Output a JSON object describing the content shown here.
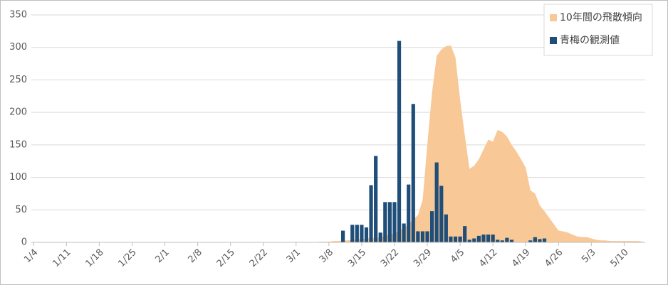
{
  "chart_data": {
    "type": "combo",
    "categories": [
      "1/4",
      null,
      null,
      null,
      null,
      null,
      null,
      "1/11",
      null,
      null,
      null,
      null,
      null,
      null,
      "1/18",
      null,
      null,
      null,
      null,
      null,
      null,
      "1/25",
      null,
      null,
      null,
      null,
      null,
      null,
      "2/1",
      null,
      null,
      null,
      null,
      null,
      null,
      "2/8",
      null,
      null,
      null,
      null,
      null,
      null,
      "2/15",
      null,
      null,
      null,
      null,
      null,
      null,
      "2/22",
      null,
      null,
      null,
      null,
      null,
      null,
      "3/1",
      null,
      null,
      null,
      null,
      null,
      null,
      "3/8",
      null,
      null,
      null,
      null,
      null,
      null,
      "3/15",
      null,
      null,
      null,
      null,
      null,
      null,
      "3/22",
      null,
      null,
      null,
      null,
      null,
      null,
      "3/29",
      null,
      null,
      null,
      null,
      null,
      null,
      "4/5",
      null,
      null,
      null,
      null,
      null,
      null,
      "4/12",
      null,
      null,
      null,
      null,
      null,
      null,
      "4/19",
      null,
      null,
      null,
      null,
      null,
      null,
      "4/26",
      null,
      null,
      null,
      null,
      null,
      null,
      "5/3",
      null,
      null,
      null,
      null,
      null,
      null,
      "5/10",
      null,
      null,
      null,
      null
    ],
    "series": [
      {
        "name": "10年間の飛散傾向",
        "type": "area",
        "color": "#f9c897",
        "values": [
          0,
          0,
          0,
          0,
          0,
          0,
          0,
          0,
          0,
          0,
          0,
          0,
          0,
          0,
          0,
          0,
          0,
          0,
          0,
          0,
          0,
          0,
          0,
          0,
          0,
          0,
          0,
          0,
          0,
          0,
          0,
          0,
          0,
          0,
          0,
          0,
          0,
          0,
          0,
          0,
          0,
          0,
          0,
          0,
          0,
          0,
          0,
          0,
          0,
          0,
          0,
          0,
          0,
          0,
          0,
          0,
          0,
          0,
          0,
          0,
          0,
          1,
          1,
          1,
          2,
          2,
          3,
          3,
          4,
          5,
          5,
          6,
          7,
          7,
          8,
          10,
          12,
          14,
          18,
          22,
          28,
          35,
          42,
          65,
          150,
          230,
          287,
          297,
          302,
          303,
          285,
          220,
          165,
          113,
          118,
          128,
          143,
          158,
          155,
          173,
          170,
          163,
          150,
          140,
          128,
          115,
          80,
          75,
          57,
          48,
          38,
          28,
          18,
          17,
          15,
          12,
          9,
          8,
          8,
          6,
          4,
          3,
          3,
          2,
          2,
          2,
          2,
          2,
          2,
          2,
          1
        ]
      },
      {
        "name": "青梅の観測値",
        "type": "bar",
        "color": "#1f4e79",
        "values": [
          0,
          0,
          0,
          0,
          0,
          0,
          0,
          0,
          0,
          0,
          0,
          0,
          0,
          0,
          0,
          0,
          0,
          0,
          0,
          0,
          0,
          0,
          0,
          0,
          0,
          0,
          0,
          0,
          0,
          0,
          0,
          0,
          0,
          0,
          0,
          0,
          0,
          0,
          0,
          0,
          0,
          0,
          0,
          0,
          0,
          0,
          0,
          0,
          0,
          0,
          0,
          0,
          0,
          0,
          0,
          0,
          0,
          0,
          0,
          0,
          0,
          0,
          0,
          0,
          0,
          0,
          18,
          0,
          27,
          27,
          27,
          23,
          88,
          133,
          15,
          62,
          62,
          62,
          310,
          29,
          89,
          213,
          17,
          17,
          17,
          48,
          123,
          87,
          43,
          9,
          9,
          9,
          25,
          4,
          6,
          10,
          12,
          12,
          12,
          4,
          3,
          7,
          4,
          0,
          0,
          0,
          3,
          8,
          5,
          6,
          0,
          0,
          0,
          0,
          0,
          0,
          0,
          0,
          0,
          0,
          0,
          0,
          0,
          0,
          0,
          0,
          0,
          0,
          0,
          0,
          0
        ]
      }
    ],
    "ylim": [
      0,
      350
    ],
    "yticks": [
      0,
      50,
      100,
      150,
      200,
      250,
      300,
      350
    ],
    "grid": true,
    "legend": "top-right"
  }
}
